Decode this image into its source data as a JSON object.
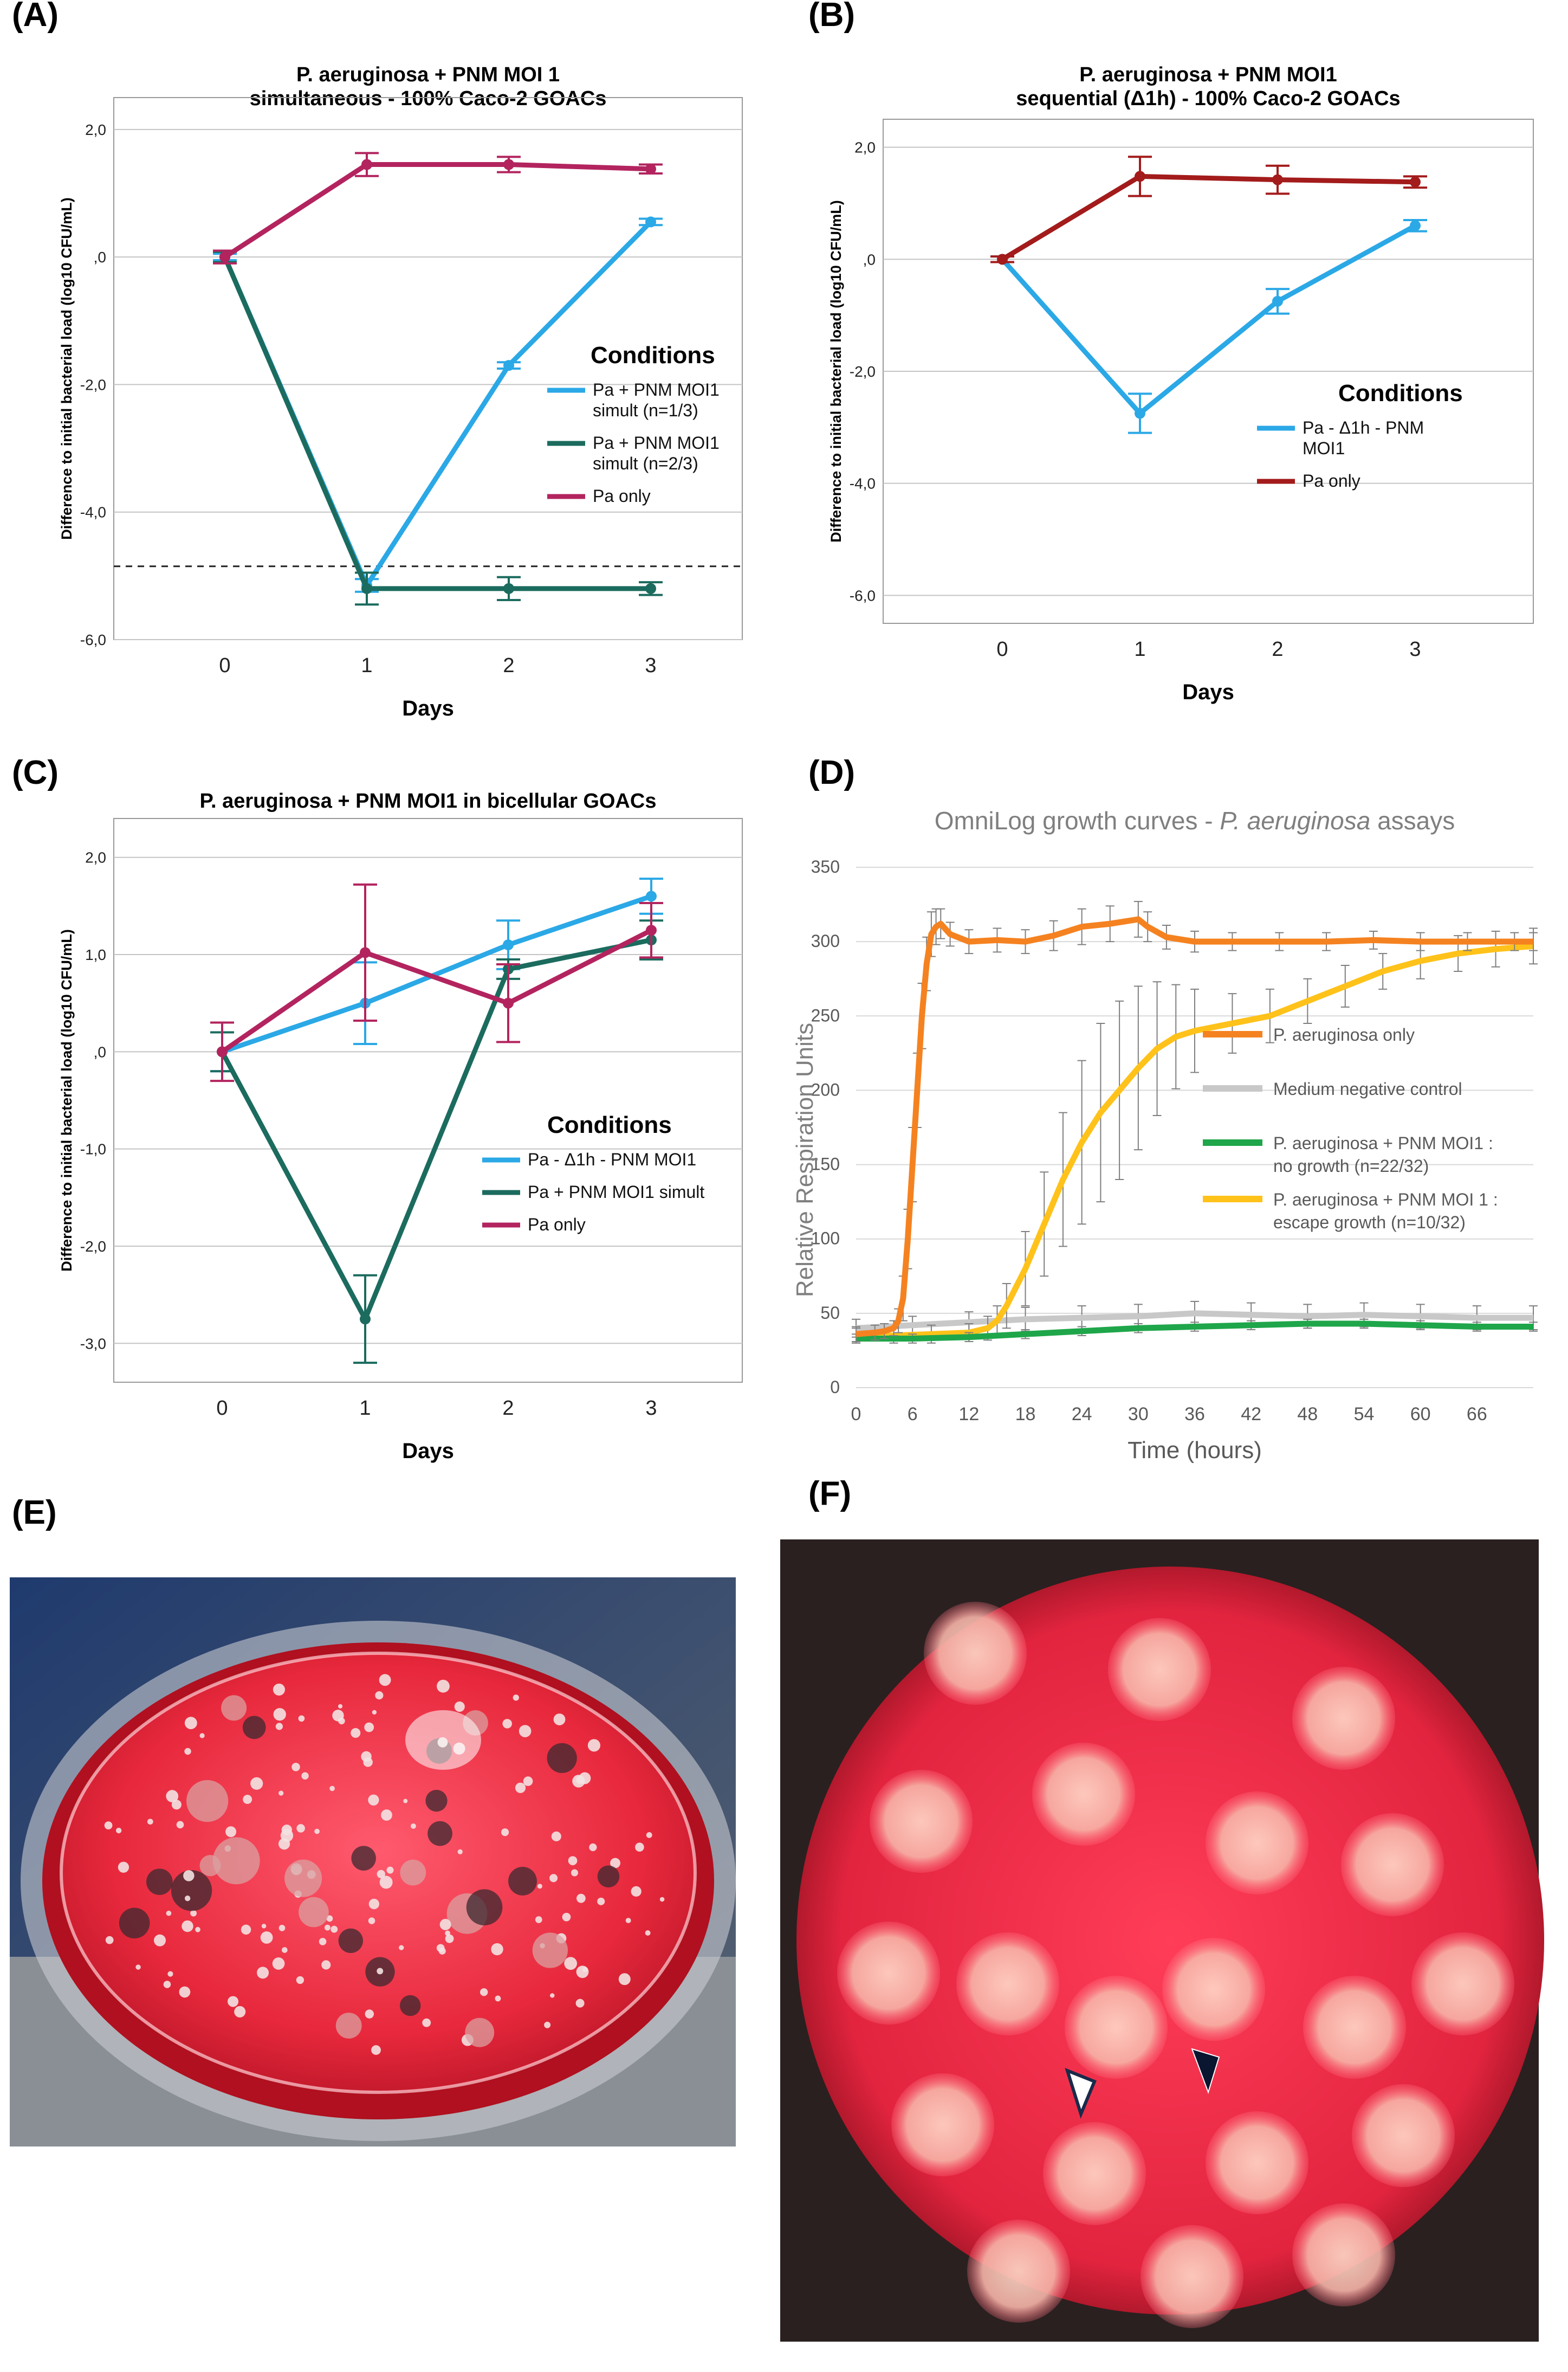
{
  "panel_labels": {
    "A": "(A)",
    "B": "(B)",
    "C": "(C)",
    "D": "(D)",
    "E": "(E)",
    "F": "(F)"
  },
  "colors": {
    "light_blue": "#2ba8e6",
    "teal": "#1b6b5e",
    "magenta": "#b3245f",
    "dark_red": "#a31b1b",
    "orange": "#f58220",
    "gray": "#c8c8c8",
    "green": "#1fa64a",
    "yellow": "#ffc21a",
    "agar_red": "#e8283c"
  },
  "chart_data": [
    {
      "id": "A",
      "type": "line",
      "title": [
        "P. aeruginosa + PNM MOI 1",
        "simultaneous - 100% Caco-2 GOACs"
      ],
      "xlabel": "Days",
      "ylabel": "Difference to initial bacterial load (log10 CFU/mL)",
      "xticks": [
        "0",
        "1",
        "2",
        "3"
      ],
      "yticks": [
        "2,0",
        ",0",
        "-2,0",
        "-4,0",
        "-6,0"
      ],
      "ytick_values": [
        2,
        0,
        -2,
        -4,
        -6
      ],
      "ylim": [
        -6,
        2.5
      ],
      "dashed_hline": -4.85,
      "legend_title": "Conditions",
      "series": [
        {
          "name": "Pa + PNM MOI1 simult (n=1/3)",
          "legend_lines": [
            "Pa + PNM MOI1",
            "simult (n=1/3)"
          ],
          "color": "light_blue",
          "values": [
            0,
            -5.15,
            -1.7,
            0.55
          ],
          "err": [
            0.05,
            0.1,
            0.05,
            0.05
          ]
        },
        {
          "name": "Pa + PNM MOI1 simult (n=2/3)",
          "legend_lines": [
            "Pa + PNM MOI1",
            "simult (n=2/3)"
          ],
          "color": "teal",
          "values": [
            0,
            -5.2,
            -5.2,
            -5.2
          ],
          "err": [
            0.08,
            0.25,
            0.18,
            0.1
          ]
        },
        {
          "name": "Pa only",
          "legend_lines": [
            "Pa only"
          ],
          "color": "magenta",
          "values": [
            0,
            1.45,
            1.45,
            1.38
          ],
          "err": [
            0.1,
            0.18,
            0.12,
            0.07
          ]
        }
      ]
    },
    {
      "id": "B",
      "type": "line",
      "title": [
        "P. aeruginosa + PNM MOI1",
        "sequential (Δ1h) - 100% Caco-2 GOACs"
      ],
      "xlabel": "Days",
      "ylabel": "Difference to initial bacterial load (log10 CFU/mL)",
      "xticks": [
        "0",
        "1",
        "2",
        "3"
      ],
      "yticks": [
        "2,0",
        ",0",
        "-2,0",
        "-4,0",
        "-6,0"
      ],
      "ytick_values": [
        2,
        0,
        -2,
        -4,
        -6
      ],
      "ylim": [
        -6.5,
        2.5
      ],
      "legend_title": "Conditions",
      "series": [
        {
          "name": "Pa - Δ1h - PNM MOI1",
          "legend_lines": [
            "Pa - Δ1h - PNM",
            "MOI1"
          ],
          "color": "light_blue",
          "values": [
            0,
            -2.75,
            -0.75,
            0.6
          ],
          "err": [
            0.05,
            0.35,
            0.22,
            0.1
          ]
        },
        {
          "name": "Pa only",
          "legend_lines": [
            "Pa only"
          ],
          "color": "dark_red",
          "values": [
            0,
            1.48,
            1.42,
            1.38
          ],
          "err": [
            0.05,
            0.35,
            0.25,
            0.1
          ]
        }
      ]
    },
    {
      "id": "C",
      "type": "line",
      "title": [
        "P. aeruginosa + PNM MOI1 in bicellular GOACs"
      ],
      "xlabel": "Days",
      "ylabel": "Difference to initial bacterial load (log10 CFU/mL)",
      "xticks": [
        "0",
        "1",
        "2",
        "3"
      ],
      "yticks": [
        "2,0",
        "1,0",
        ",0",
        "-1,0",
        "-2,0",
        "-3,0"
      ],
      "ytick_values": [
        2,
        1,
        0,
        -1,
        -2,
        -3
      ],
      "ylim": [
        -3.4,
        2.4
      ],
      "legend_title": "Conditions",
      "series": [
        {
          "name": "Pa - Δ1h - PNM MOI1",
          "legend_lines": [
            "Pa - Δ1h - PNM MOI1"
          ],
          "color": "light_blue",
          "values": [
            0,
            0.5,
            1.1,
            1.6
          ],
          "err": [
            0.2,
            0.42,
            0.25,
            0.18
          ]
        },
        {
          "name": "Pa + PNM MOI1 simult",
          "legend_lines": [
            "Pa + PNM MOI1 simult"
          ],
          "color": "teal",
          "values": [
            0,
            -2.75,
            0.85,
            1.15
          ],
          "err": [
            0.2,
            0.45,
            0.1,
            0.2
          ]
        },
        {
          "name": "Pa only",
          "legend_lines": [
            "Pa only"
          ],
          "color": "magenta",
          "values": [
            0,
            1.02,
            0.5,
            1.25
          ],
          "err": [
            0.3,
            0.7,
            0.4,
            0.28
          ]
        }
      ]
    },
    {
      "id": "D",
      "type": "line",
      "title": [
        "OmniLog growth curves - P. aeruginosa assays"
      ],
      "title_parts": {
        "prefix": "OmniLog growth curves - ",
        "italic": "P. aeruginosa",
        "suffix": " assays"
      },
      "xlabel": "Time (hours)",
      "ylabel": "Relative Respiration Units",
      "xticks": [
        "0",
        "6",
        "12",
        "18",
        "24",
        "30",
        "36",
        "42",
        "48",
        "54",
        "60",
        "66"
      ],
      "xtick_values": [
        0,
        6,
        12,
        18,
        24,
        30,
        36,
        42,
        48,
        54,
        60,
        66
      ],
      "yticks": [
        "0",
        "50",
        "100",
        "150",
        "200",
        "250",
        "300",
        "350"
      ],
      "ytick_values": [
        0,
        50,
        100,
        150,
        200,
        250,
        300,
        350
      ],
      "xlim": [
        0,
        72
      ],
      "ylim": [
        0,
        350
      ],
      "series": [
        {
          "name": "P. aeruginosa only",
          "legend_lines": [
            "P. aeruginosa only"
          ],
          "color": "orange",
          "x": [
            0,
            2,
            3,
            4,
            4.5,
            5,
            5.5,
            6,
            6.5,
            7,
            7.5,
            8,
            8.5,
            9,
            10,
            12,
            15,
            18,
            21,
            24,
            27,
            30,
            31,
            33,
            36,
            40,
            45,
            50,
            55,
            60,
            65,
            70,
            72
          ],
          "y": [
            36,
            37,
            38,
            40,
            45,
            60,
            100,
            150,
            200,
            250,
            285,
            305,
            310,
            312,
            305,
            300,
            301,
            300,
            304,
            310,
            312,
            315,
            310,
            303,
            300,
            300,
            300,
            300,
            301,
            300,
            300,
            300,
            300
          ],
          "err": [
            5,
            5,
            5,
            5,
            8,
            15,
            20,
            25,
            25,
            22,
            18,
            15,
            12,
            10,
            8,
            8,
            8,
            8,
            10,
            12,
            12,
            12,
            10,
            8,
            7,
            6,
            6,
            6,
            6,
            6,
            6,
            6,
            6
          ]
        },
        {
          "name": "Medium negative control",
          "legend_lines": [
            "Medium negative control"
          ],
          "color": "gray",
          "x": [
            0,
            6,
            12,
            18,
            24,
            30,
            36,
            42,
            48,
            54,
            60,
            66,
            72
          ],
          "y": [
            40,
            42,
            44,
            46,
            47,
            48,
            50,
            49,
            48,
            49,
            48,
            47,
            47
          ],
          "err": [
            6,
            6,
            7,
            8,
            8,
            8,
            8,
            8,
            8,
            8,
            8,
            8,
            8
          ]
        },
        {
          "name": "P. aeruginosa + PNM MOI1 : no growth (n=22/32)",
          "legend_lines": [
            "P. aeruginosa + PNM MOI1 :",
            "no growth (n=22/32)"
          ],
          "color": "green",
          "x": [
            0,
            6,
            12,
            18,
            24,
            30,
            36,
            42,
            48,
            54,
            60,
            66,
            72
          ],
          "y": [
            33,
            33,
            34,
            36,
            38,
            40,
            41,
            42,
            43,
            43,
            42,
            41,
            41
          ],
          "err": [
            3,
            3,
            3,
            3,
            3,
            3,
            3,
            3,
            3,
            3,
            3,
            3,
            3
          ]
        },
        {
          "name": "P. aeruginosa + PNM MOI 1 : escape growth (n=10/32)",
          "legend_lines": [
            "P. aeruginosa + PNM MOI 1 :",
            "escape growth (n=10/32)"
          ],
          "color": "yellow",
          "x": [
            0,
            4,
            8,
            12,
            14,
            15,
            16,
            18,
            20,
            22,
            24,
            26,
            28,
            30,
            32,
            34,
            36,
            40,
            44,
            48,
            52,
            56,
            60,
            64,
            68,
            72
          ],
          "y": [
            35,
            35,
            36,
            37,
            40,
            45,
            55,
            80,
            110,
            140,
            165,
            185,
            200,
            215,
            228,
            236,
            240,
            245,
            250,
            260,
            270,
            280,
            287,
            292,
            295,
            297
          ],
          "err": [
            5,
            5,
            6,
            6,
            8,
            10,
            15,
            25,
            35,
            45,
            55,
            60,
            60,
            55,
            45,
            35,
            28,
            20,
            18,
            15,
            14,
            12,
            12,
            12,
            12,
            12
          ]
        }
      ]
    }
  ]
}
